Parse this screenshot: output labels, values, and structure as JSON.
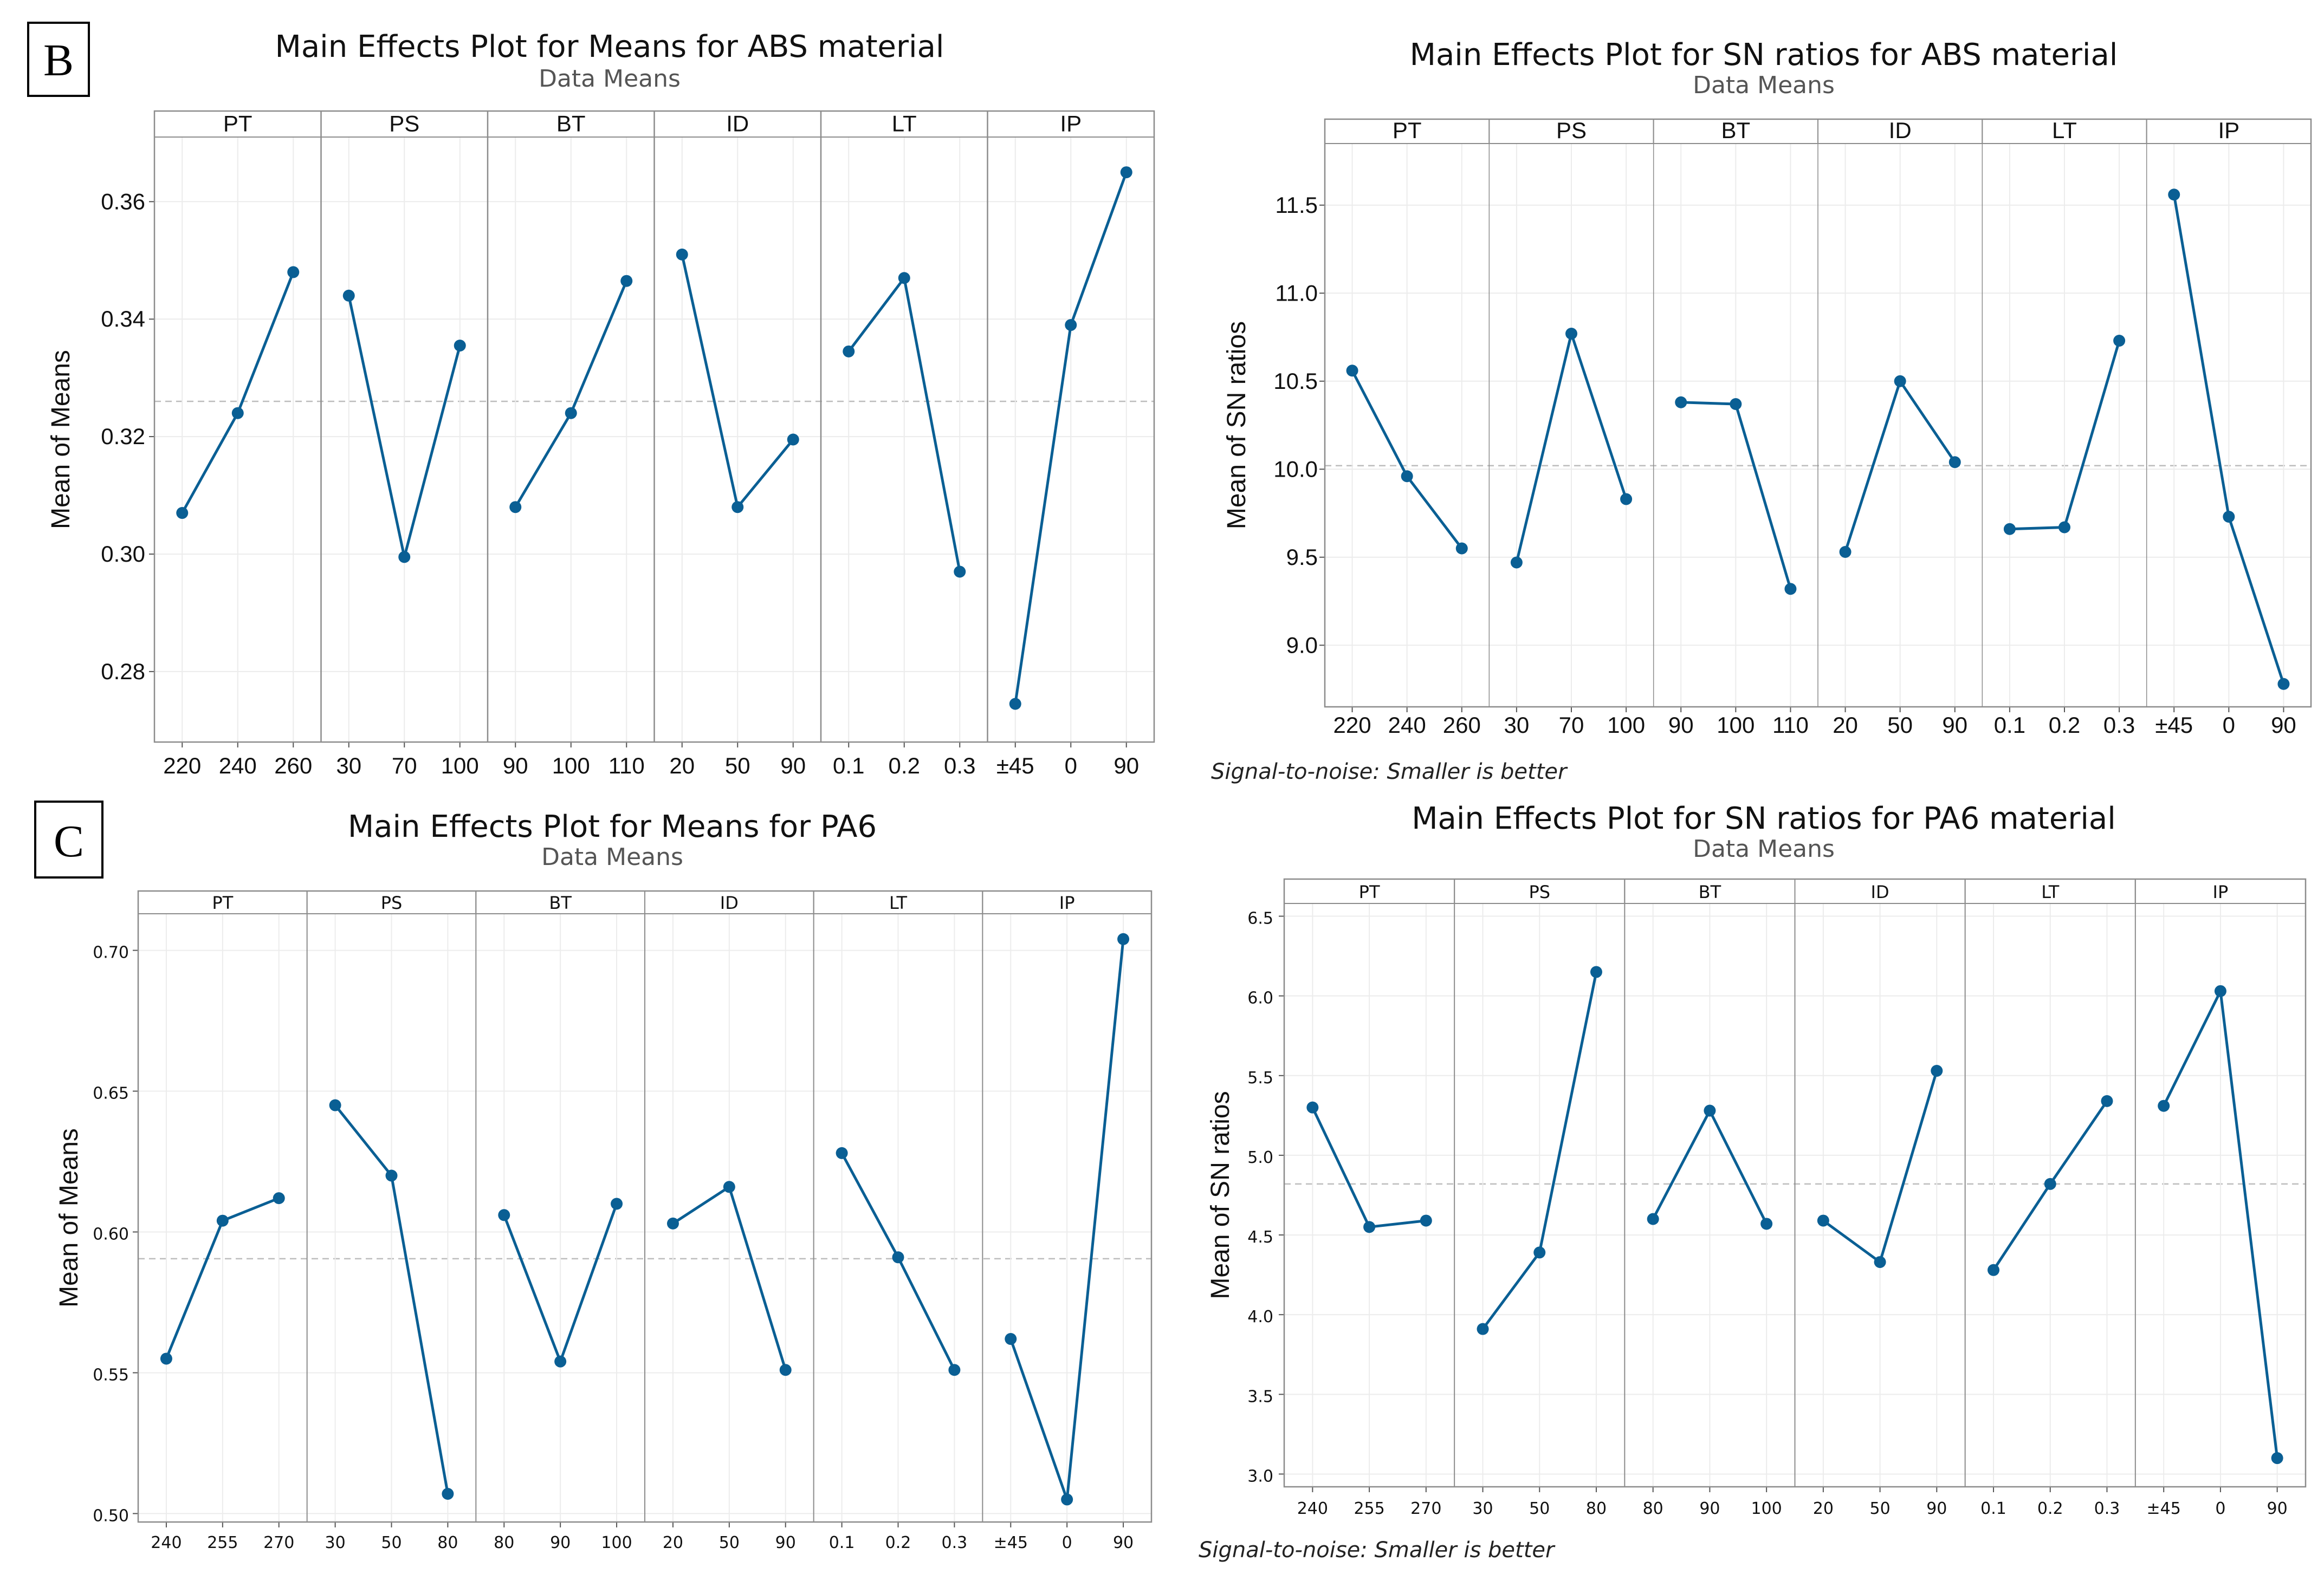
{
  "colors": {
    "series": "#0a5f94",
    "reference": "#bdbdbd",
    "grid": "#ececec",
    "frame": "#8c8c8c"
  },
  "chart_data": [
    {
      "id": "abs-means",
      "type": "line",
      "title": "Main Effects Plot for Means for ABS material",
      "subtitle": "Data Means",
      "panel_letter": "B",
      "ylabel": "Mean of Means",
      "ylim": [
        0.268,
        0.371
      ],
      "yticks": [
        "0.28",
        "0.30",
        "0.32",
        "0.34",
        "0.36"
      ],
      "reference_line": 0.326,
      "footnote": "",
      "panels": [
        {
          "factor": "PT",
          "levels": [
            "220",
            "240",
            "260"
          ],
          "values": [
            0.307,
            0.324,
            0.348
          ]
        },
        {
          "factor": "PS",
          "levels": [
            "30",
            "70",
            "100"
          ],
          "values": [
            0.344,
            0.2995,
            0.3355
          ]
        },
        {
          "factor": "BT",
          "levels": [
            "90",
            "100",
            "110"
          ],
          "values": [
            0.308,
            0.324,
            0.3465
          ]
        },
        {
          "factor": "ID",
          "levels": [
            "20",
            "50",
            "90"
          ],
          "values": [
            0.351,
            0.308,
            0.3195
          ]
        },
        {
          "factor": "LT",
          "levels": [
            "0.1",
            "0.2",
            "0.3"
          ],
          "values": [
            0.3345,
            0.347,
            0.297
          ]
        },
        {
          "factor": "IP",
          "levels": [
            "±45",
            "0",
            "90"
          ],
          "values": [
            0.2745,
            0.339,
            0.365
          ]
        }
      ]
    },
    {
      "id": "abs-sn",
      "type": "line",
      "title": "Main Effects Plot for SN ratios for ABS material",
      "subtitle": "Data Means",
      "panel_letter": "",
      "ylabel": "Mean of SN ratios",
      "ylim": [
        8.65,
        11.85
      ],
      "yticks": [
        "9.0",
        "9.5",
        "10.0",
        "10.5",
        "11.0",
        "11.5"
      ],
      "reference_line": 10.02,
      "footnote": "Signal-to-noise: Smaller is better",
      "panels": [
        {
          "factor": "PT",
          "levels": [
            "220",
            "240",
            "260"
          ],
          "values": [
            10.56,
            9.96,
            9.55
          ]
        },
        {
          "factor": "PS",
          "levels": [
            "30",
            "70",
            "100"
          ],
          "values": [
            9.47,
            10.77,
            9.83
          ]
        },
        {
          "factor": "BT",
          "levels": [
            "90",
            "100",
            "110"
          ],
          "values": [
            10.38,
            10.37,
            9.32
          ]
        },
        {
          "factor": "ID",
          "levels": [
            "20",
            "50",
            "90"
          ],
          "values": [
            9.53,
            10.5,
            10.04
          ]
        },
        {
          "factor": "LT",
          "levels": [
            "0.1",
            "0.2",
            "0.3"
          ],
          "values": [
            9.66,
            9.67,
            10.73
          ]
        },
        {
          "factor": "IP",
          "levels": [
            "±45",
            "0",
            "90"
          ],
          "values": [
            11.56,
            9.73,
            8.78
          ]
        }
      ]
    },
    {
      "id": "pa6-means",
      "type": "line",
      "title": "Main Effects Plot for Means for PA6",
      "subtitle": "Data Means",
      "panel_letter": "C",
      "ylabel": "Mean of Means",
      "ylim": [
        0.497,
        0.713
      ],
      "yticks": [
        "0.50",
        "0.55",
        "0.60",
        "0.65",
        "0.70"
      ],
      "reference_line": 0.5905,
      "footnote": "",
      "panels": [
        {
          "factor": "PT",
          "levels": [
            "240",
            "255",
            "270"
          ],
          "values": [
            0.555,
            0.604,
            0.612
          ]
        },
        {
          "factor": "PS",
          "levels": [
            "30",
            "50",
            "80"
          ],
          "values": [
            0.645,
            0.62,
            0.507
          ]
        },
        {
          "factor": "BT",
          "levels": [
            "80",
            "90",
            "100"
          ],
          "values": [
            0.606,
            0.554,
            0.61
          ]
        },
        {
          "factor": "ID",
          "levels": [
            "20",
            "50",
            "90"
          ],
          "values": [
            0.603,
            0.616,
            0.551
          ]
        },
        {
          "factor": "LT",
          "levels": [
            "0.1",
            "0.2",
            "0.3"
          ],
          "values": [
            0.628,
            0.591,
            0.551
          ]
        },
        {
          "factor": "IP",
          "levels": [
            "±45",
            "0",
            "90"
          ],
          "values": [
            0.562,
            0.505,
            0.704
          ]
        }
      ]
    },
    {
      "id": "pa6-sn",
      "type": "line",
      "title": "Main Effects Plot for SN ratios for PA6 material",
      "subtitle": "Data Means",
      "panel_letter": "",
      "ylabel": "Mean of SN ratios",
      "ylim": [
        2.92,
        6.58
      ],
      "yticks": [
        "3.0",
        "3.5",
        "4.0",
        "4.5",
        "5.0",
        "5.5",
        "6.0",
        "6.5"
      ],
      "reference_line": 4.82,
      "footnote": "Signal-to-noise: Smaller is better",
      "panels": [
        {
          "factor": "PT",
          "levels": [
            "240",
            "255",
            "270"
          ],
          "values": [
            5.3,
            4.55,
            4.59
          ]
        },
        {
          "factor": "PS",
          "levels": [
            "30",
            "50",
            "80"
          ],
          "values": [
            3.91,
            4.39,
            6.15
          ]
        },
        {
          "factor": "BT",
          "levels": [
            "80",
            "90",
            "100"
          ],
          "values": [
            4.6,
            5.28,
            4.57
          ]
        },
        {
          "factor": "ID",
          "levels": [
            "20",
            "50",
            "90"
          ],
          "values": [
            4.59,
            4.33,
            5.53
          ]
        },
        {
          "factor": "LT",
          "levels": [
            "0.1",
            "0.2",
            "0.3"
          ],
          "values": [
            4.28,
            4.82,
            5.34
          ]
        },
        {
          "factor": "IP",
          "levels": [
            "±45",
            "0",
            "90"
          ],
          "values": [
            5.31,
            6.03,
            3.1
          ]
        }
      ]
    }
  ]
}
